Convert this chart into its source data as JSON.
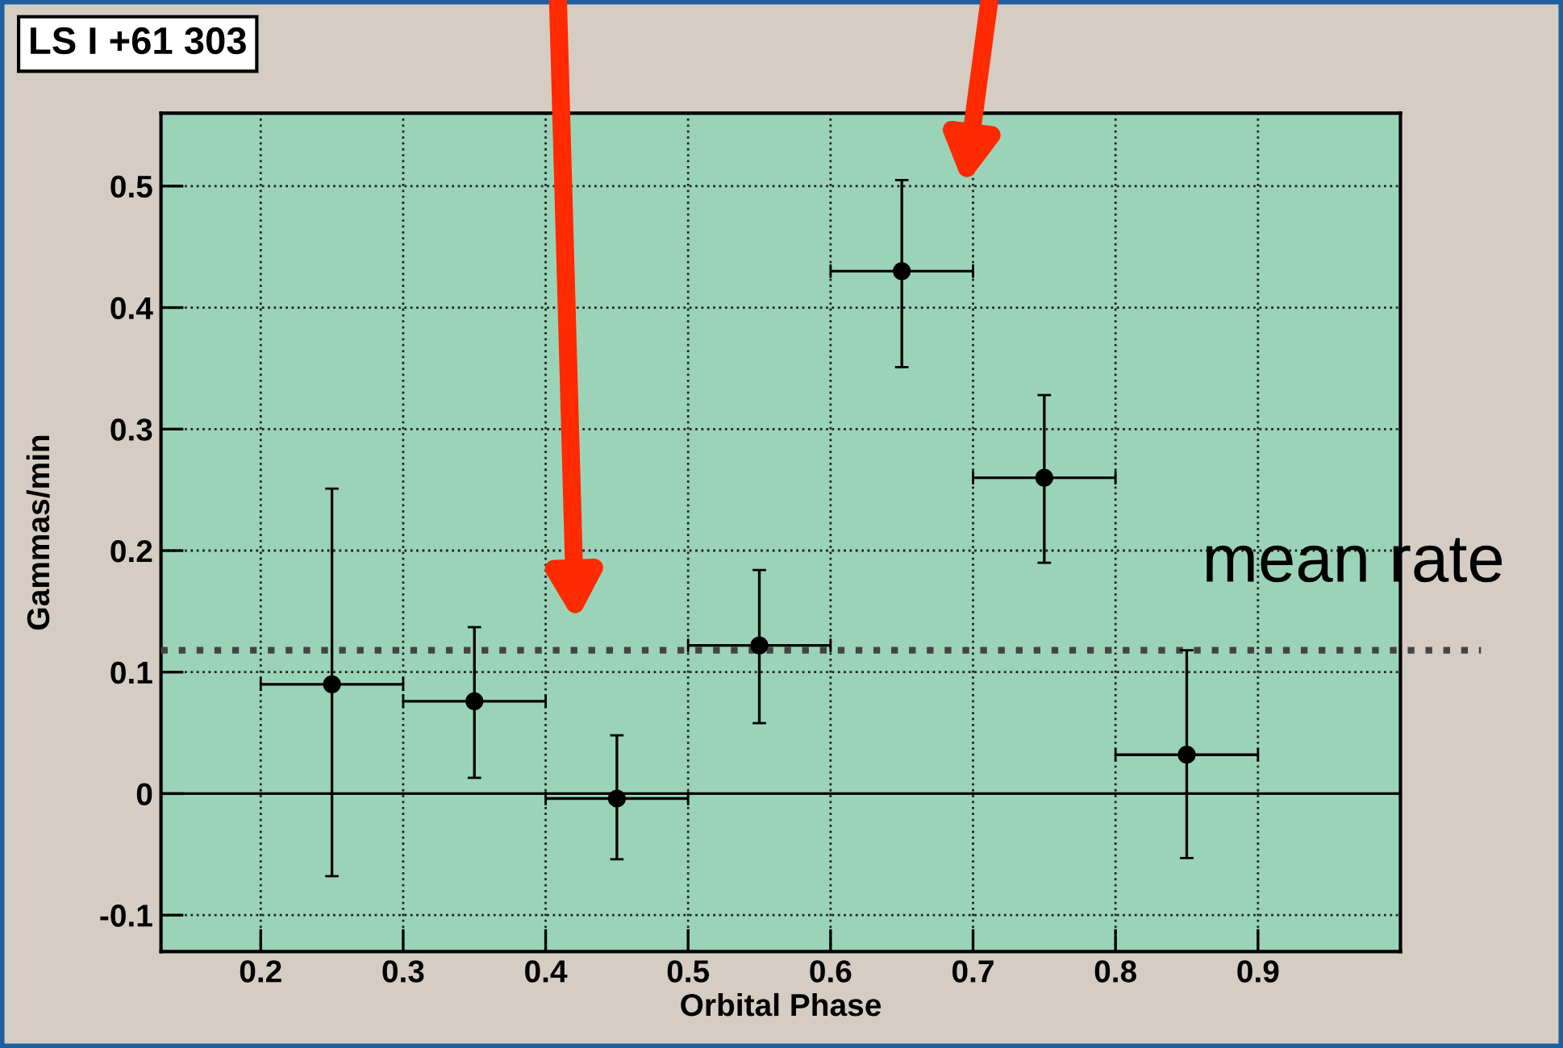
{
  "chart_data": {
    "type": "scatter",
    "title": "LS I +61 303",
    "xlabel": "Orbital Phase",
    "ylabel": "Gammas/min",
    "x": [
      0.25,
      0.35,
      0.45,
      0.55,
      0.65,
      0.75,
      0.85
    ],
    "series": [
      {
        "color": "#000000",
        "values": [
          0.09,
          0.076,
          -0.004,
          0.122,
          0.43,
          0.26,
          0.032
        ],
        "errors": [
          [
            -0.068,
            0.251
          ],
          [
            0.013,
            0.137
          ],
          [
            -0.054,
            0.048
          ],
          [
            0.058,
            0.184
          ],
          [
            0.351,
            0.505
          ],
          [
            0.19,
            0.328
          ],
          [
            -0.053,
            0.118
          ]
        ],
        "xerrors": [
          [
            0.2,
            0.3
          ],
          [
            0.3,
            0.4
          ],
          [
            0.4,
            0.5
          ],
          [
            0.5,
            0.6
          ],
          [
            0.6,
            0.7
          ],
          [
            0.7,
            0.8
          ],
          [
            0.8,
            0.9
          ]
        ]
      }
    ],
    "marker": "circle",
    "xlim": [
      0.13,
      1.0
    ],
    "ylim": [
      -0.13,
      0.56
    ],
    "xticks": [
      0.2,
      0.3,
      0.4,
      0.5,
      0.6,
      0.7,
      0.8,
      0.9
    ],
    "yticks": [
      -0.1,
      0,
      0.1,
      0.2,
      0.3,
      0.4,
      0.5
    ],
    "grid": true,
    "ref_lines": [
      {
        "axis": "y",
        "value": 0.118,
        "label": "mean rate",
        "line_style": "dotted",
        "color": "#444444"
      },
      {
        "axis": "y",
        "value": 0,
        "label": null,
        "line_style": "solid",
        "color": "#000000"
      }
    ]
  }
}
